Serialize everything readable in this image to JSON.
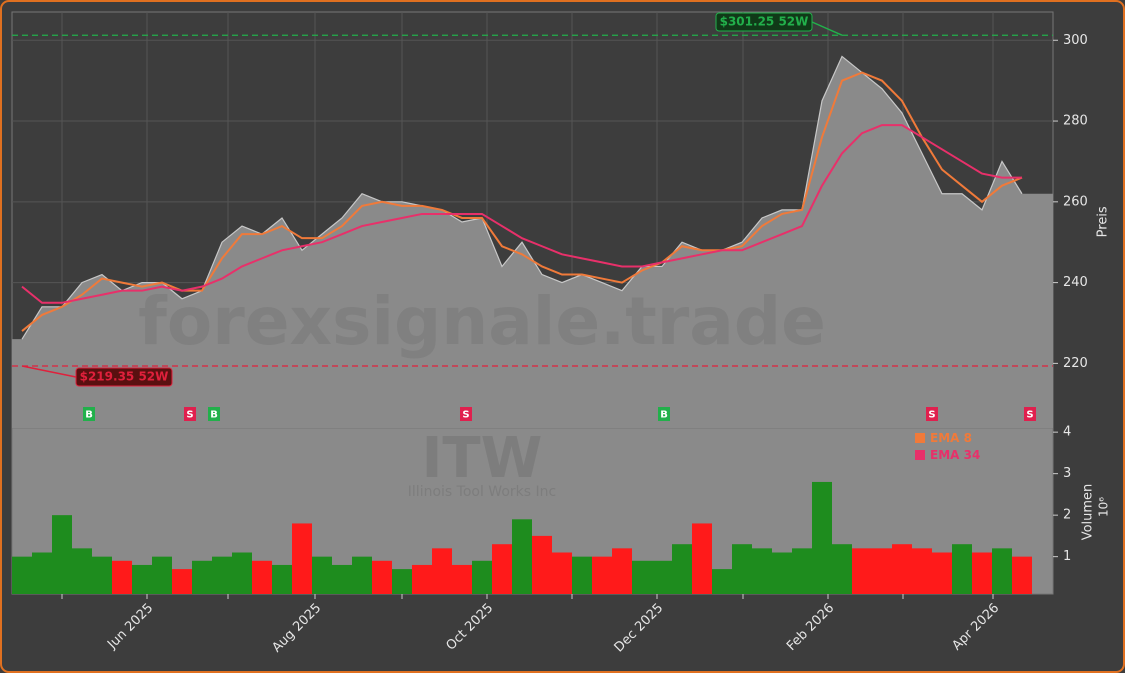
{
  "chart_data": [
    {
      "type": "line",
      "ylabel": "Preis",
      "watermark": "forexsignale.trade",
      "grid": true,
      "color": "#8a8a8a",
      "line_color": "#c8c8c8",
      "values": [
        226,
        234,
        234,
        240,
        242,
        238,
        240,
        240,
        236,
        238,
        250,
        254,
        252,
        256,
        248,
        252,
        256,
        262,
        260,
        260,
        259,
        258,
        255,
        256,
        244,
        250,
        242,
        240,
        242,
        240,
        238,
        244,
        244,
        250,
        248,
        248,
        250,
        256,
        258,
        258,
        285,
        296,
        292,
        288,
        282,
        272,
        262,
        262,
        258,
        270,
        262
      ],
      "series": [
        {
          "name": "EMA 8",
          "color": "#f07a3a",
          "values": [
            228,
            232,
            234,
            237,
            241,
            240,
            239,
            240,
            238,
            238,
            246,
            252,
            252,
            254,
            251,
            251,
            254,
            259,
            260,
            259,
            259,
            258,
            256,
            256,
            249,
            247,
            244,
            242,
            242,
            241,
            240,
            243,
            245,
            249,
            248,
            248,
            249,
            254,
            257,
            258,
            276,
            290,
            292,
            290,
            285,
            276,
            268,
            264,
            260,
            264,
            266
          ]
        },
        {
          "name": "EMA 34",
          "color": "#e8306a",
          "values": [
            239,
            235,
            235,
            236,
            237,
            238,
            238,
            239,
            238,
            239,
            241,
            244,
            246,
            248,
            249,
            250,
            252,
            254,
            255,
            256,
            257,
            257,
            257,
            257,
            254,
            251,
            249,
            247,
            246,
            245,
            244,
            244,
            245,
            246,
            247,
            248,
            248,
            250,
            252,
            254,
            264,
            272,
            277,
            279,
            279,
            276,
            273,
            270,
            267,
            266,
            266
          ]
        }
      ],
      "ylim": [
        204,
        307
      ],
      "yticks": [
        220,
        240,
        260,
        280,
        300
      ],
      "annotations": [
        {
          "label": "$301.25 52W",
          "value": 301.25,
          "color": "#22b04b"
        },
        {
          "label": "$219.35 52W",
          "value": 219.35,
          "color": "#e0203c"
        }
      ],
      "signals": [
        {
          "label": "B",
          "x": 3.35,
          "color": "#22b04b"
        },
        {
          "label": "S",
          "x": 8.4,
          "color": "#e0204e"
        },
        {
          "label": "B",
          "x": 9.6,
          "color": "#22b04b"
        },
        {
          "label": "S",
          "x": 22.2,
          "color": "#e0204e"
        },
        {
          "label": "B",
          "x": 32.1,
          "color": "#22b04b"
        },
        {
          "label": "S",
          "x": 45.5,
          "color": "#e0204e"
        },
        {
          "label": "S",
          "x": 50.4,
          "color": "#e0204e"
        }
      ]
    },
    {
      "type": "bar",
      "title": "ITW",
      "subtitle": "Illinois Tool Works Inc",
      "ylabel": "Volumen",
      "exponent": "10⁶",
      "up_color": "#1e8c1e",
      "down_color": "#ff1a1a",
      "values": [
        1.0,
        1.1,
        2.0,
        1.2,
        1.0,
        0.9,
        0.8,
        1.0,
        0.7,
        0.9,
        1.0,
        1.1,
        0.9,
        0.8,
        1.8,
        1.0,
        0.8,
        1.0,
        0.9,
        0.7,
        0.8,
        1.2,
        0.8,
        0.9,
        1.3,
        1.9,
        1.5,
        1.1,
        1.0,
        1.0,
        1.2,
        0.9,
        0.9,
        1.3,
        1.8,
        0.7,
        1.3,
        1.2,
        1.1,
        1.2,
        2.8,
        1.3,
        1.2,
        1.2,
        1.3,
        1.2,
        1.1,
        1.3,
        1.1,
        1.2,
        1.0
      ],
      "ylim": [
        0.1,
        4.1
      ],
      "yticks": [
        1,
        2,
        3,
        4
      ],
      "xticks": [
        {
          "value": 2.0,
          "label": null
        },
        {
          "value": 6.25,
          "label": "Jun 2025"
        },
        {
          "value": 10.3,
          "label": null
        },
        {
          "value": 14.65,
          "label": "Aug 2025"
        },
        {
          "value": 19.0,
          "label": null
        },
        {
          "value": 23.25,
          "label": "Oct 2025"
        },
        {
          "value": 27.5,
          "label": null
        },
        {
          "value": 31.75,
          "label": "Dec 2025"
        },
        {
          "value": 36.05,
          "label": null
        },
        {
          "value": 40.3,
          "label": "Feb 2026"
        },
        {
          "value": 44.05,
          "label": null
        },
        {
          "value": 48.55,
          "label": "Apr 2026"
        }
      ]
    }
  ]
}
